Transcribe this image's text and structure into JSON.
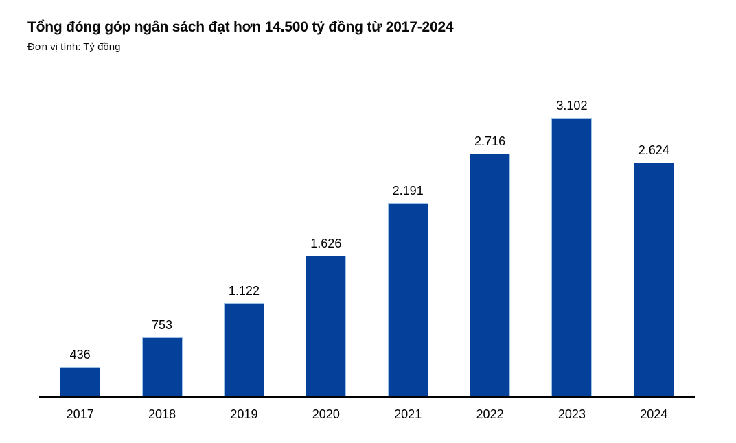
{
  "header": {
    "title": "Tổng đóng góp ngân sách đạt hơn 14.500 tỷ đồng từ 2017-2024",
    "subtitle": "Đơn vị tính: Tỷ đồng"
  },
  "chart_data": {
    "type": "bar",
    "title": "Tổng đóng góp ngân sách đạt hơn 14.500 tỷ đồng từ 2017-2024",
    "subtitle": "Đơn vị tính: Tỷ đồng",
    "unit": "Tỷ đồng",
    "categories": [
      "2017",
      "2018",
      "2019",
      "2020",
      "2021",
      "2022",
      "2023",
      "2024"
    ],
    "values": [
      436,
      753,
      1122,
      1626,
      2191,
      2716,
      3102,
      2624
    ],
    "value_labels": [
      "436",
      "753",
      "1.122",
      "1.626",
      "2.191",
      "2.716",
      "3.102",
      "2.624"
    ],
    "xlabel": "",
    "ylabel": "Tỷ đồng",
    "ylim": [
      0,
      3300
    ],
    "grid": false,
    "legend": "none",
    "colors": {
      "bar_fill": "#05409a",
      "bar_border": "#9cc2e5",
      "axis_line": "#000000",
      "text": "#000000",
      "background": "#ffffff"
    }
  }
}
